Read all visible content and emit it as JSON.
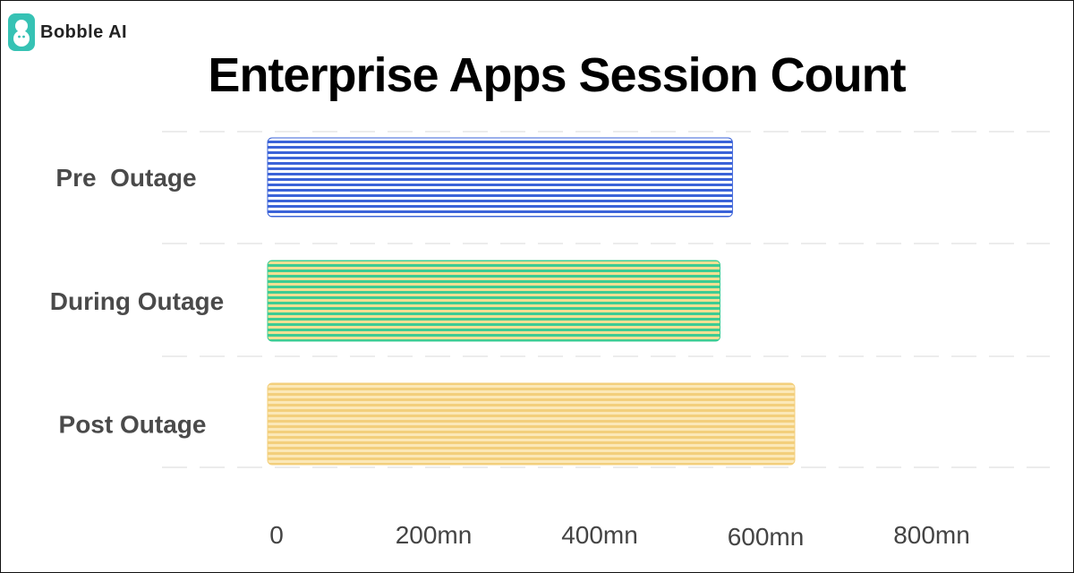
{
  "brand": {
    "name": "Bobble AI",
    "logo_icon": "bobble-logo-icon",
    "logo_color": "#36c2b4"
  },
  "chart_data": {
    "type": "bar",
    "orientation": "horizontal",
    "title": "Enterprise Apps Session Count",
    "categories": [
      "Pre  Outage",
      "During Outage",
      "Post Outage"
    ],
    "values": [
      560,
      545,
      635
    ],
    "value_unit": "mn",
    "xlim": [
      0,
      800
    ],
    "x_ticks": [
      {
        "value": 0,
        "label": "0"
      },
      {
        "value": 200,
        "label": "200mn"
      },
      {
        "value": 400,
        "label": "400mn"
      },
      {
        "value": 600,
        "label": "600mn"
      },
      {
        "value": 800,
        "label": "800mn"
      }
    ],
    "grid": "dashed horizontal separators",
    "colors": {
      "Pre  Outage": {
        "stripe": "#3b63d8",
        "base": "#ffffff"
      },
      "During Outage": {
        "stripe": "#3dcc93",
        "base": "#f4df92"
      },
      "Post Outage": {
        "stripe": "#f3cf7c",
        "base": "#fbe8b8"
      }
    }
  }
}
